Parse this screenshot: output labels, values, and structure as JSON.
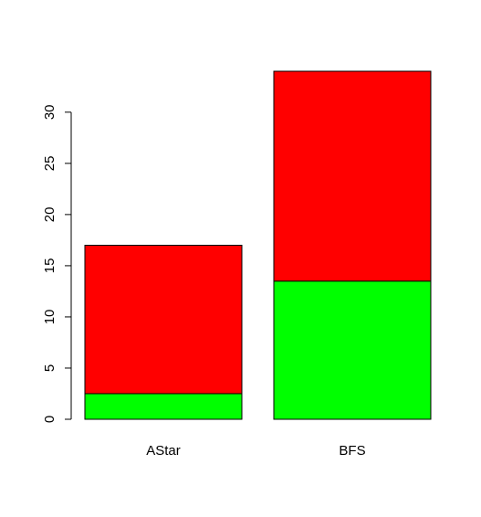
{
  "chart_data": {
    "type": "bar",
    "stacked": true,
    "categories": [
      "AStar",
      "BFS"
    ],
    "series": [
      {
        "color": "#00ff00",
        "values": [
          2.5,
          13.5
        ]
      },
      {
        "color": "#ff0000",
        "values": [
          14.5,
          20.5
        ]
      }
    ],
    "totals": [
      17,
      34
    ],
    "ylim": [
      0,
      34
    ],
    "yticks": [
      0,
      5,
      10,
      15,
      20,
      25,
      30
    ],
    "title": "",
    "xlabel": "",
    "ylabel": "",
    "grid": false,
    "legend": false
  }
}
